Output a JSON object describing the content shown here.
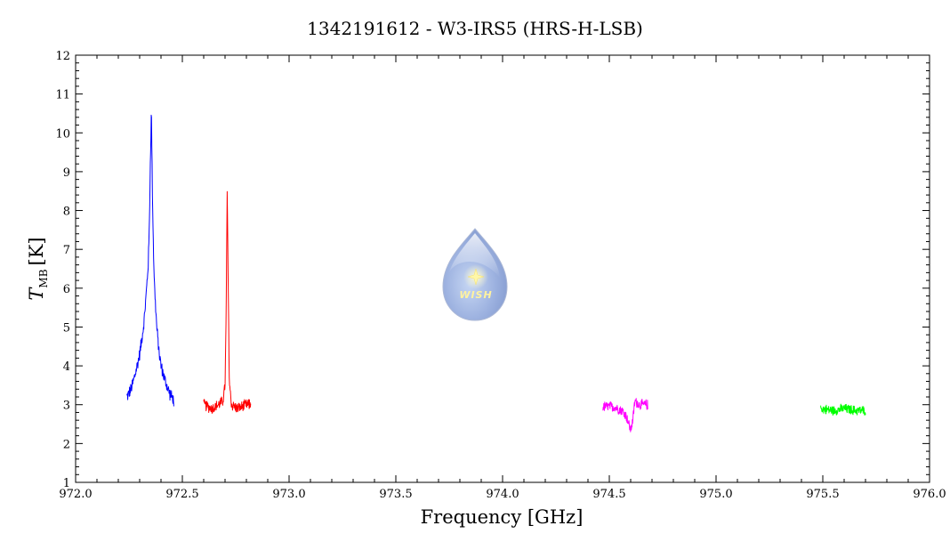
{
  "chart_data": {
    "type": "line",
    "title": "1342191612 - W3-IRS5 (HRS-H-LSB)",
    "xlabel": "Frequency [GHz]",
    "ylabel_main": "T",
    "ylabel_sub": "MB",
    "ylabel_unit": "[K]",
    "xlim": [
      972.0,
      976.0
    ],
    "ylim": [
      1,
      12
    ],
    "xticks": [
      972.0,
      972.5,
      973.0,
      973.5,
      974.0,
      974.5,
      975.0,
      975.5,
      976.0
    ],
    "xtick_labels": [
      "972.0",
      "972.5",
      "973.0",
      "973.5",
      "974.0",
      "974.5",
      "975.0",
      "975.5",
      "976.0"
    ],
    "yticks": [
      1,
      2,
      3,
      4,
      5,
      6,
      7,
      8,
      9,
      10,
      11,
      12
    ],
    "ytick_labels": [
      "1",
      "2",
      "3",
      "4",
      "5",
      "6",
      "7",
      "8",
      "9",
      "10",
      "11",
      "12"
    ],
    "grid": false,
    "series": [
      {
        "color": "#0000ff",
        "x": [
          972.24,
          972.26,
          972.28,
          972.3,
          972.32,
          972.33,
          972.34,
          972.345,
          972.35,
          972.355,
          972.36,
          972.365,
          972.37,
          972.38,
          972.39,
          972.4,
          972.42,
          972.44,
          972.46
        ],
        "values": [
          3.2,
          3.4,
          3.8,
          4.3,
          5.1,
          5.8,
          6.6,
          7.5,
          9.2,
          10.6,
          8.4,
          6.9,
          6.0,
          5.0,
          4.4,
          4.0,
          3.6,
          3.3,
          3.1
        ],
        "noise": 0.18
      },
      {
        "color": "#ff0000",
        "x": [
          972.6,
          972.64,
          972.67,
          972.69,
          972.7,
          972.705,
          972.71,
          972.715,
          972.72,
          972.73,
          972.76,
          972.8,
          972.82
        ],
        "values": [
          3.0,
          2.9,
          3.0,
          3.1,
          3.5,
          5.2,
          8.5,
          6.0,
          3.6,
          3.0,
          2.9,
          3.0,
          3.0
        ],
        "noise": 0.16
      },
      {
        "color": "#ff00ff",
        "x": [
          974.47,
          974.52,
          974.56,
          974.58,
          974.6,
          974.61,
          974.62,
          974.64,
          974.68
        ],
        "values": [
          2.95,
          2.95,
          2.85,
          2.7,
          2.35,
          2.6,
          3.1,
          3.0,
          3.0
        ],
        "noise": 0.15
      },
      {
        "color": "#00ff00",
        "x": [
          975.49,
          975.55,
          975.6,
          975.65,
          975.7
        ],
        "values": [
          2.9,
          2.85,
          2.9,
          2.85,
          2.85
        ],
        "noise": 0.14
      }
    ]
  },
  "logo": {
    "text": "WISH"
  }
}
